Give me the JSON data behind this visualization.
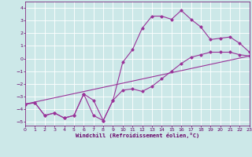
{
  "bg_color": "#cce8e8",
  "grid_color": "#ffffff",
  "line_color": "#993399",
  "marker_color": "#993399",
  "xlabel": "Windchill (Refroidissement éolien,°C)",
  "xlabel_color": "#660066",
  "tick_color": "#660066",
  "xlim": [
    0,
    23
  ],
  "ylim": [
    -5.3,
    4.5
  ],
  "yticks": [
    -5,
    -4,
    -3,
    -2,
    -1,
    0,
    1,
    2,
    3,
    4
  ],
  "xticks": [
    0,
    1,
    2,
    3,
    4,
    5,
    6,
    7,
    8,
    9,
    10,
    11,
    12,
    13,
    14,
    15,
    16,
    17,
    18,
    19,
    20,
    21,
    22,
    23
  ],
  "line1_x": [
    0,
    1,
    2,
    3,
    4,
    5,
    6,
    7,
    8,
    9,
    10,
    11,
    12,
    13,
    14,
    15,
    16,
    17,
    18,
    19,
    20,
    21,
    22,
    23
  ],
  "line1_y": [
    -3.6,
    -3.5,
    -4.5,
    -4.3,
    -4.7,
    -4.5,
    -2.8,
    -4.5,
    -4.9,
    -3.3,
    -0.3,
    0.7,
    2.4,
    3.35,
    3.35,
    3.1,
    3.8,
    3.1,
    2.5,
    1.5,
    1.6,
    1.7,
    1.2,
    0.5
  ],
  "line2_x": [
    0,
    1,
    2,
    3,
    4,
    5,
    6,
    7,
    8,
    9,
    10,
    11,
    12,
    13,
    14,
    15,
    16,
    17,
    18,
    19,
    20,
    21,
    22,
    23
  ],
  "line2_y": [
    -3.6,
    -3.5,
    -4.5,
    -4.3,
    -4.7,
    -4.5,
    -2.8,
    -3.3,
    -4.9,
    -3.3,
    -2.5,
    -2.4,
    -2.6,
    -2.2,
    -1.6,
    -1.0,
    -0.4,
    0.1,
    0.3,
    0.5,
    0.5,
    0.5,
    0.3,
    0.2
  ],
  "line3_x": [
    0,
    23
  ],
  "line3_y": [
    -3.6,
    0.2
  ]
}
